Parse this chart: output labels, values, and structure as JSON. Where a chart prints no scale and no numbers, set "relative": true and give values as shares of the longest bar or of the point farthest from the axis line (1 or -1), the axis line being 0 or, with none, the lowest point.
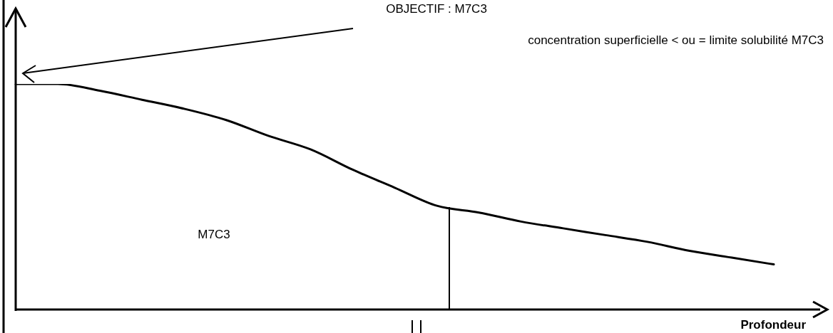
{
  "chart_data": {
    "type": "line",
    "title": "OBJECTIF : M7C3",
    "xlabel": "Profondeur",
    "relative": true,
    "marker": "none",
    "line_style": "solid",
    "annotations": [
      "concentration superficielle < ou = limite solubilité M7C3",
      "M7C3"
    ],
    "categories": [
      null,
      null,
      null,
      null,
      null,
      null,
      null,
      null,
      null,
      null,
      null,
      null,
      null,
      null,
      null,
      null,
      null,
      null,
      null
    ],
    "series": [
      {
        "color": "#000000",
        "values": [
          1,
          1,
          0.97,
          0.93,
          0.89,
          0.84,
          0.77,
          0.71,
          0.62,
          0.54,
          0.46,
          0.43,
          0.39,
          0.36,
          0.33,
          0.3,
          0.26,
          0.23,
          0.2
        ]
      }
    ]
  }
}
